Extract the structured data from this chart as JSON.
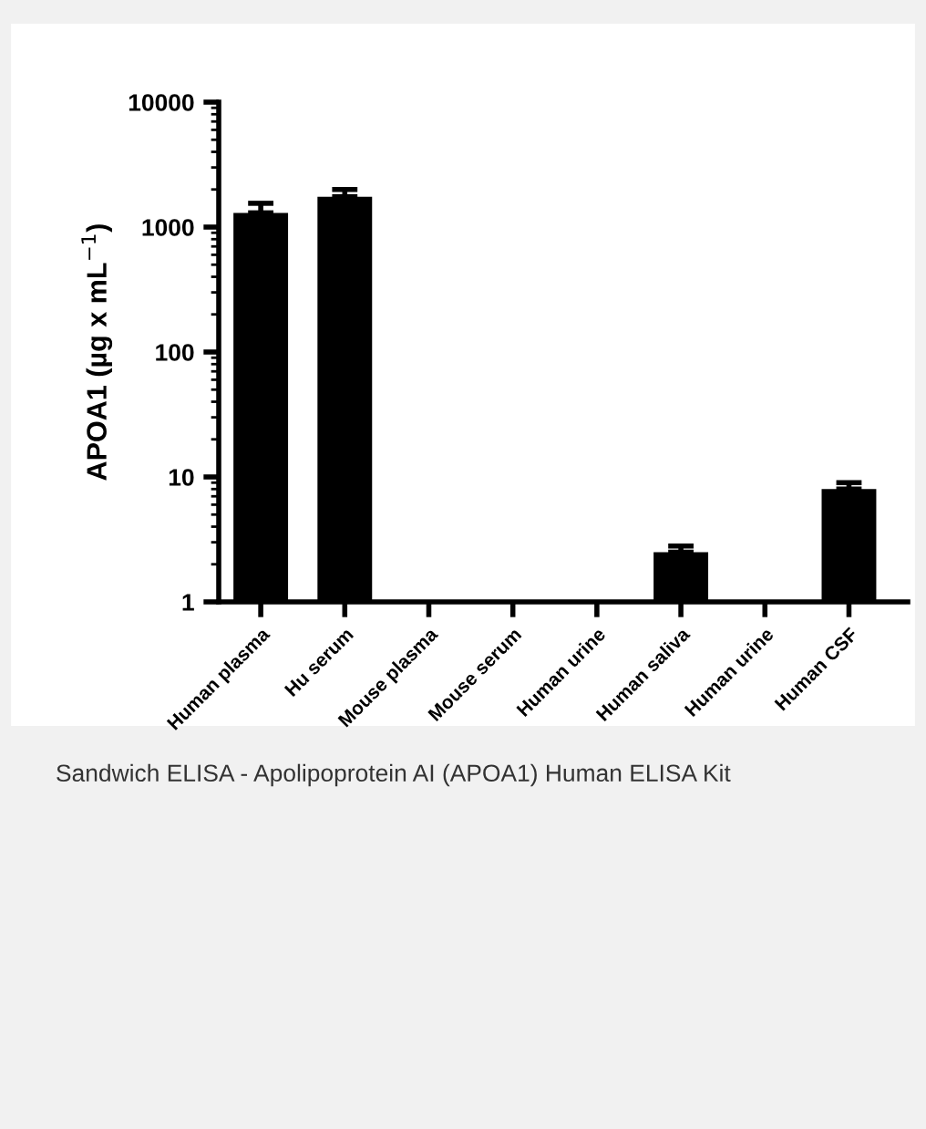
{
  "chart_data": {
    "type": "bar",
    "categories": [
      "Human plasma",
      "Hu serum",
      "Mouse plasma",
      "Mouse serum",
      "Human urine",
      "Human saliva",
      "Human urine",
      "Human CSF"
    ],
    "values": [
      1300,
      1750,
      null,
      null,
      null,
      2.5,
      null,
      8
    ],
    "errors": [
      [
        1300,
        1550
      ],
      [
        1750,
        2000
      ],
      null,
      null,
      null,
      [
        2.5,
        2.8
      ],
      null,
      [
        8,
        9
      ]
    ],
    "color": "#000000",
    "ylabel": "APOA1 (µg x mL$^{−1}$)",
    "log": true,
    "ylim": [
      1,
      10000
    ],
    "yticks": [
      1,
      10,
      100,
      1000,
      10000
    ],
    "grid": false,
    "legend": false,
    "annotations": [
      "Sandwich ELISA - Apolipoprotein AI (APOA1) Human ELISA Kit"
    ]
  }
}
